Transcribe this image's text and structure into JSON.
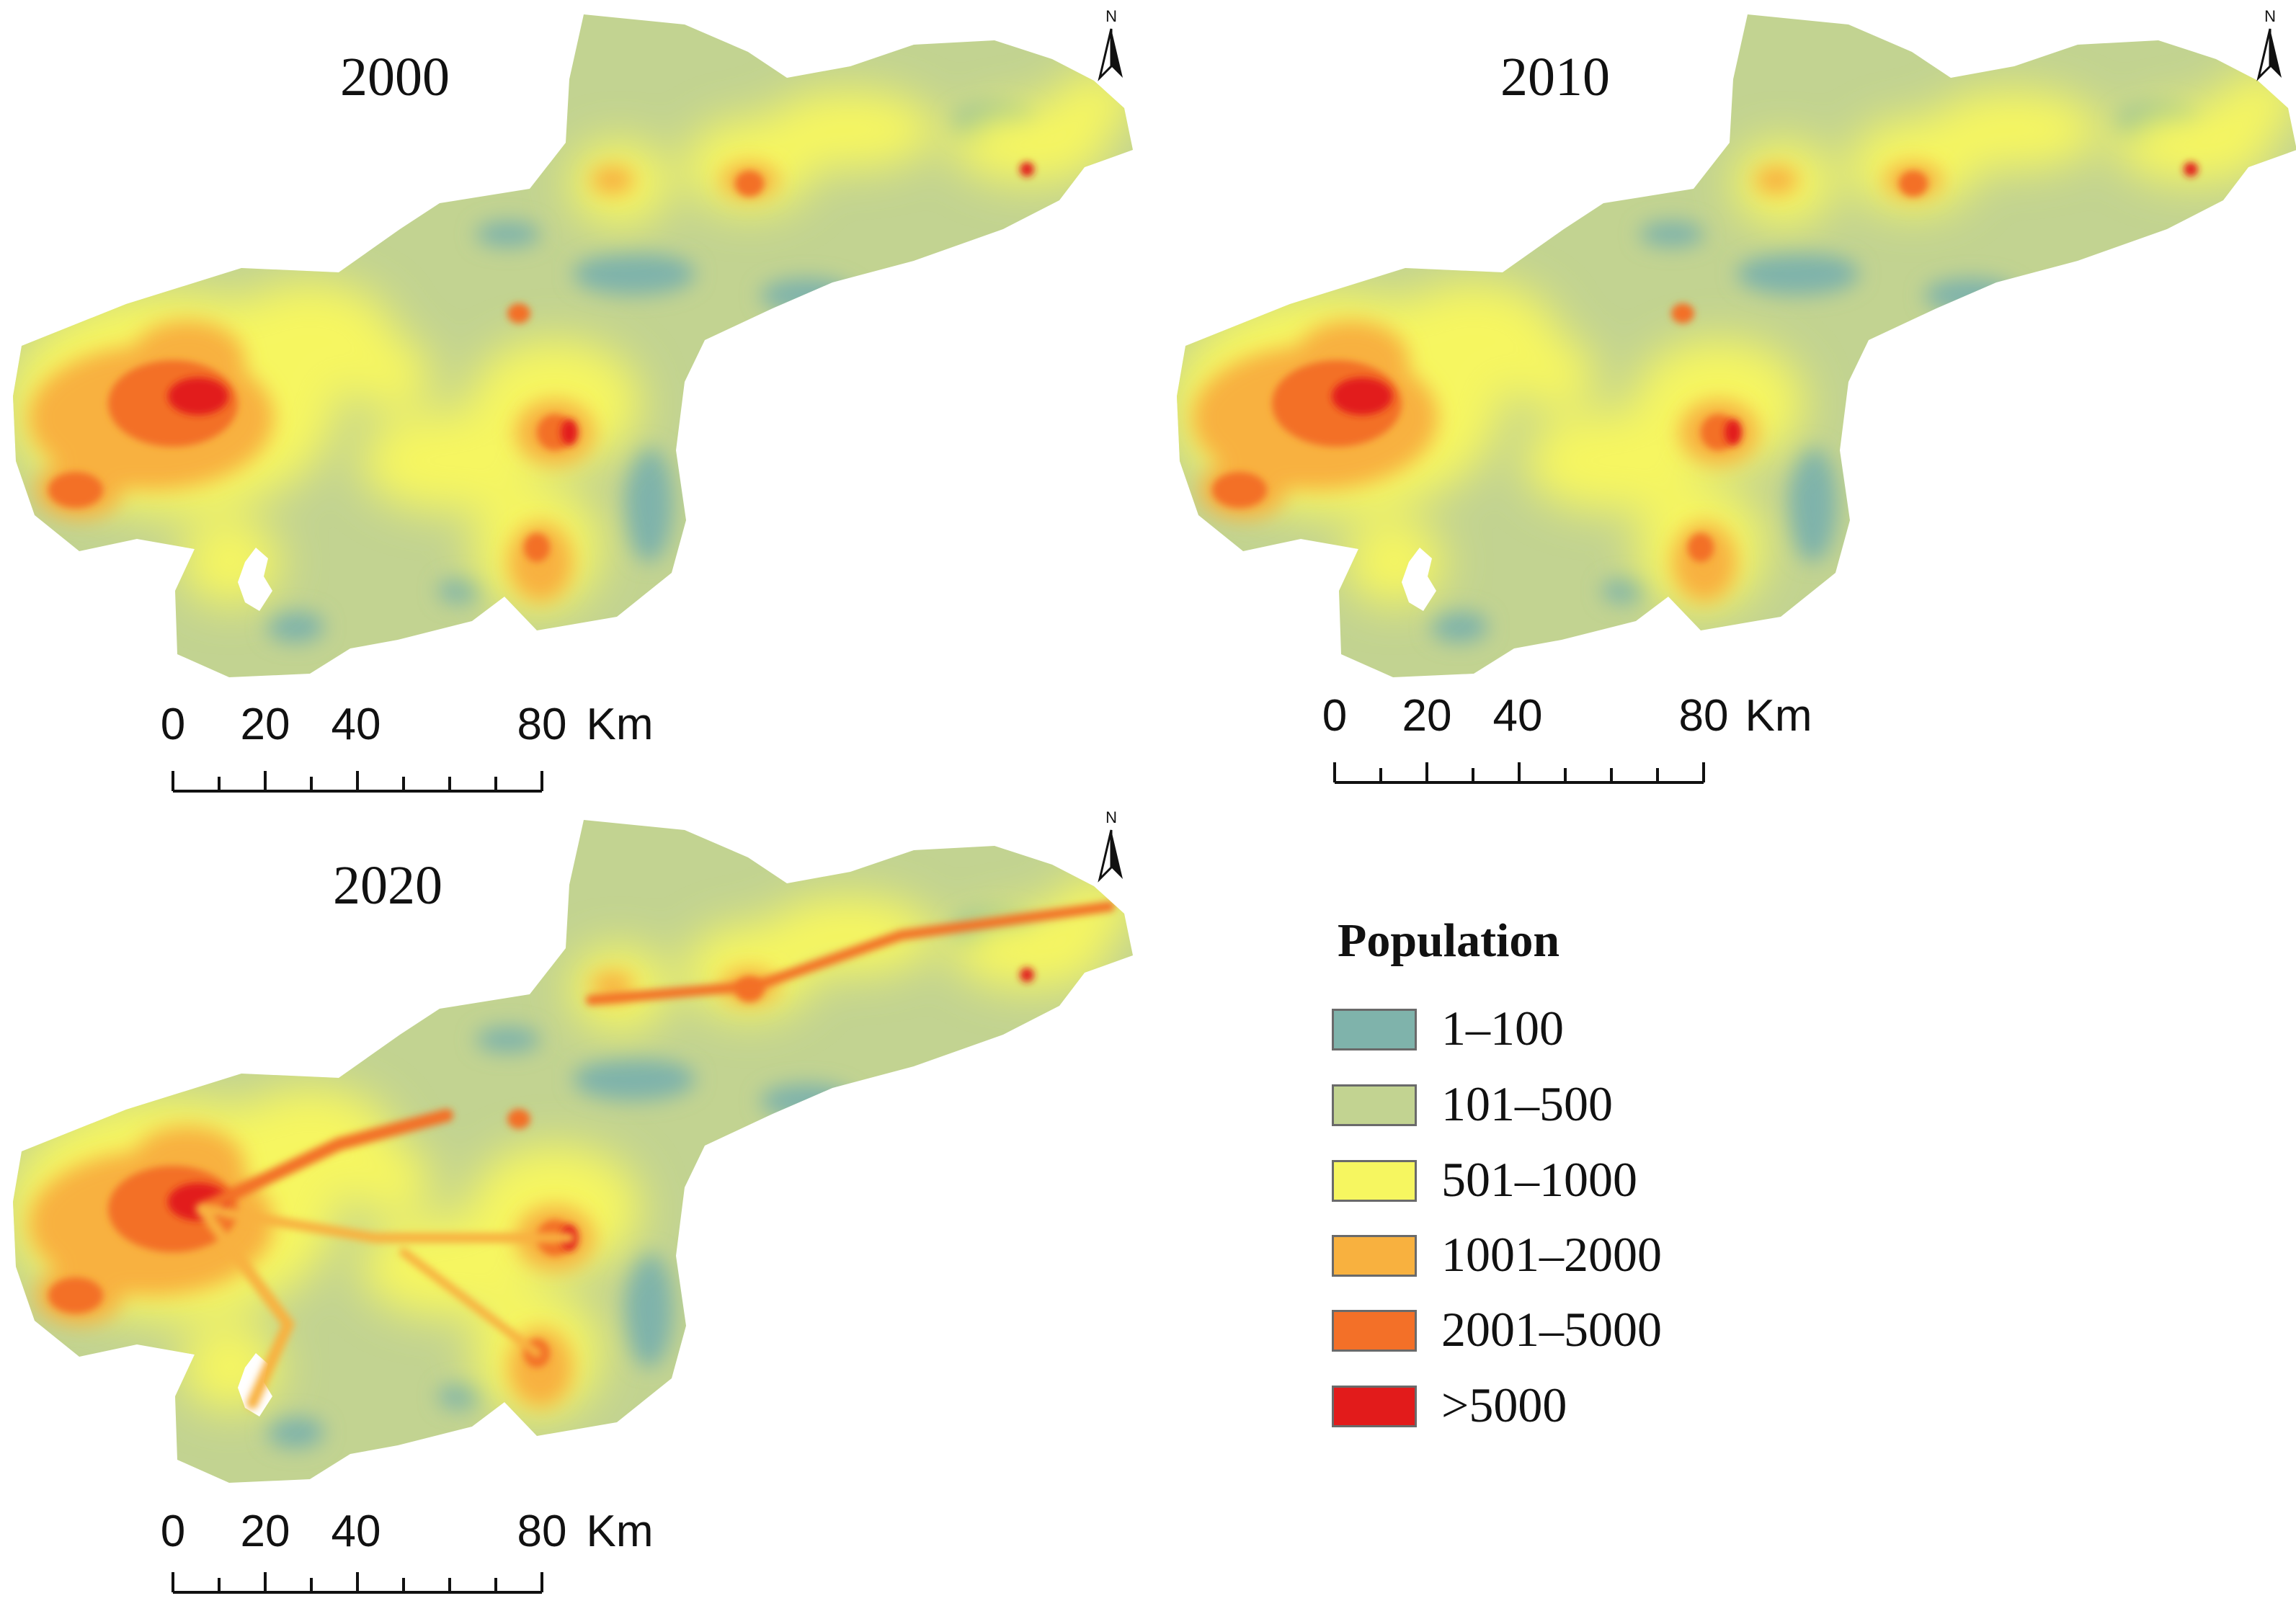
{
  "maps": [
    {
      "year": "2000"
    },
    {
      "year": "2010"
    },
    {
      "year": "2020"
    }
  ],
  "north_arrow_label": "N",
  "scale_bar": {
    "ticks": [
      "0",
      "20",
      "40",
      "80"
    ],
    "tick_values": [
      0,
      20,
      40,
      80
    ],
    "unit": "Km"
  },
  "legend": {
    "title": "Population",
    "items": [
      {
        "label": "1–100",
        "color": "#7fb3ab"
      },
      {
        "label": "101–500",
        "color": "#c2d391"
      },
      {
        "label": "501–1000",
        "color": "#f6f660"
      },
      {
        "label": "1001–2000",
        "color": "#f8b13f"
      },
      {
        "label": "2001–5000",
        "color": "#f37028"
      },
      {
        "label": ">5000",
        "color": "#e21b1b"
      }
    ]
  }
}
